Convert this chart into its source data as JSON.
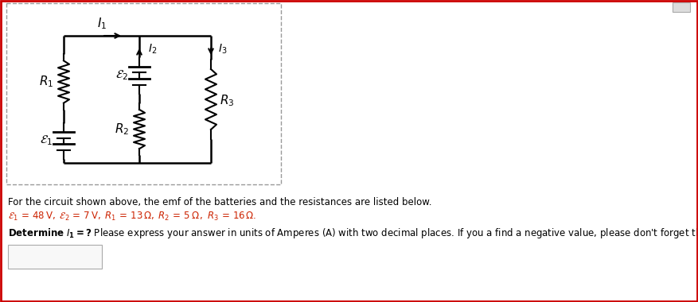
{
  "bg_color": "#ffffff",
  "border_color": "#cc0000",
  "dashed_box_color": "#999999",
  "circuit_text_color": "#000000",
  "body_text_color": "#000000",
  "red_text_color": "#cc2200",
  "line1": "For the circuit shown above, the emf of the batteries and the resistances are listed below.",
  "line2_prefix": "ε₁ = 48 V, ε₂ = 7 V, R₁ = 13 Ω, R₂ = 5 Ω , R₃ = 16 Ω.",
  "line3_rest": " Please express your answer in units of Amperes (A) with two decimal places. If you a find a negative value, please don't forget the minus sign."
}
